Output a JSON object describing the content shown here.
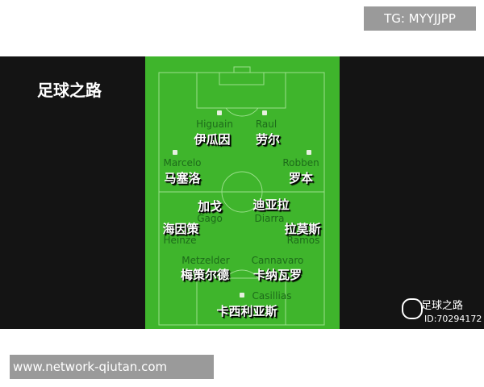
{
  "watermark_top": "TG: MYYJJPP",
  "title": "足球之路",
  "players": [
    {
      "en": "Higuain",
      "cn": "伊瓜因"
    },
    {
      "en": "Raul",
      "cn": "劳尔"
    },
    {
      "en": "Marcelo",
      "cn": "马塞洛"
    },
    {
      "en": "Robben",
      "cn": "罗本"
    },
    {
      "en": "Gago",
      "cn": "加戈"
    },
    {
      "en": "Diarra",
      "cn": "迪亚拉"
    },
    {
      "en": "Heinze",
      "cn": "海因策"
    },
    {
      "en": "Ramos",
      "cn": "拉莫斯"
    },
    {
      "en": "Metzelder",
      "cn": "梅策尔德"
    },
    {
      "en": "Cannavaro",
      "cn": "卡纳瓦罗"
    },
    {
      "en": "Casillias",
      "cn": "卡西利亚斯"
    }
  ],
  "account": {
    "name": "足球之路",
    "id": "ID:70294172"
  },
  "url": "www.network-qiutan.com",
  "colors": {
    "pitch": "#3fb52c",
    "band": "#141414"
  }
}
